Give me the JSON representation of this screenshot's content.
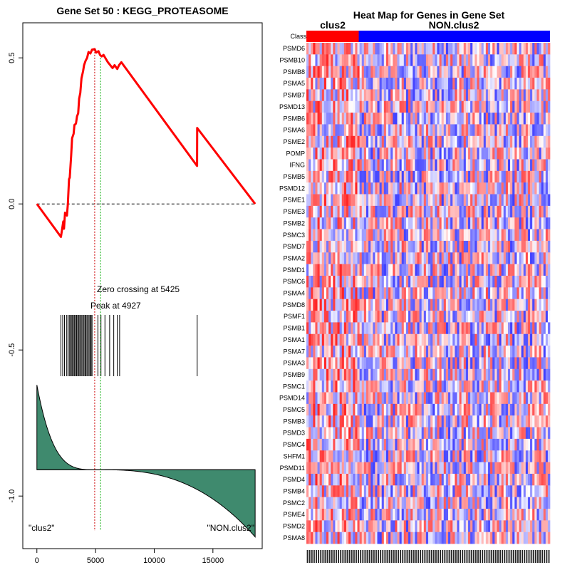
{
  "chart_data": [
    {
      "type": "line",
      "title": "Gene Set  50 : KEGG_PROTEASOME",
      "xlim": [
        -1200,
        19200
      ],
      "ylim": [
        -1.18,
        0.62
      ],
      "x_ticks": [
        0,
        5000,
        10000,
        15000
      ],
      "y_ticks": [
        0.5,
        0.0,
        -0.5,
        -1.0
      ],
      "y_tick_labels": [
        "0.5",
        "0.0",
        "-0.5",
        "-1.0"
      ],
      "n_genes": 18600,
      "peak": 4927,
      "zero_crossing": 5425,
      "peak_label": "Peak at 4927",
      "zero_label": "Zero crossing at 5425",
      "left_label": "\"clus2\"",
      "right_label": "\"NON.clus2\"",
      "running_es": [
        [
          0,
          0.0
        ],
        [
          2050,
          -0.113
        ],
        [
          2250,
          -0.06
        ],
        [
          2310,
          -0.085
        ],
        [
          2400,
          -0.03
        ],
        [
          2560,
          -0.04
        ],
        [
          2640,
          0.0
        ],
        [
          2740,
          0.085
        ],
        [
          2800,
          0.09
        ],
        [
          2920,
          0.165
        ],
        [
          3000,
          0.225
        ],
        [
          3130,
          0.24
        ],
        [
          3200,
          0.27
        ],
        [
          3330,
          0.275
        ],
        [
          3420,
          0.3
        ],
        [
          3520,
          0.31
        ],
        [
          3600,
          0.36
        ],
        [
          3700,
          0.38
        ],
        [
          3800,
          0.43
        ],
        [
          3940,
          0.455
        ],
        [
          4020,
          0.475
        ],
        [
          4150,
          0.49
        ],
        [
          4280,
          0.5
        ],
        [
          4400,
          0.52
        ],
        [
          4560,
          0.515
        ],
        [
          4700,
          0.528
        ],
        [
          4927,
          0.53
        ],
        [
          5050,
          0.518
        ],
        [
          5250,
          0.523
        ],
        [
          5380,
          0.51
        ],
        [
          5520,
          0.505
        ],
        [
          5680,
          0.51
        ],
        [
          6050,
          0.485
        ],
        [
          6450,
          0.465
        ],
        [
          6620,
          0.475
        ],
        [
          6850,
          0.462
        ],
        [
          7000,
          0.475
        ],
        [
          7200,
          0.485
        ],
        [
          13650,
          0.13
        ],
        [
          13660,
          0.26
        ],
        [
          18600,
          0.0
        ]
      ],
      "hits": [
        2050,
        2200,
        2350,
        2520,
        2640,
        2760,
        2850,
        2940,
        3030,
        3120,
        3210,
        3300,
        3380,
        3470,
        3560,
        3650,
        3740,
        3830,
        3920,
        4010,
        4100,
        4180,
        4270,
        4360,
        4450,
        4540,
        4620,
        4700,
        5200,
        5460,
        5800,
        6200,
        6550,
        6850,
        7050,
        13660
      ],
      "ranked_metric": {
        "zero_at": 5425,
        "min": -0.76,
        "y_axis": -0.91,
        "rescale_top": -0.62,
        "rescale_bottom": -1.14
      }
    },
    {
      "type": "heatmap",
      "title": "Heat Map for Genes in Gene Set",
      "class_row_label": "Class",
      "class_labels": [
        "clus2",
        "NON.clus2"
      ],
      "class_colors": [
        "#ff0000",
        "#0000ff"
      ],
      "class_split_fraction": 0.215,
      "n_samples": 110,
      "genes": [
        "PSMD6",
        "PSMB10",
        "PSMB8",
        "PSMA5",
        "PSMB7",
        "PSMD13",
        "PSMB6",
        "PSMA6",
        "PSME2",
        "POMP",
        "IFNG",
        "PSMB5",
        "PSMD12",
        "PSME1",
        "PSME3",
        "PSMB2",
        "PSMC3",
        "PSMD7",
        "PSMA2",
        "PSMD1",
        "PSMC6",
        "PSMA4",
        "PSMD8",
        "PSMF1",
        "PSMB1",
        "PSMA1",
        "PSMA7",
        "PSMA3",
        "PSMB9",
        "PSMC1",
        "PSMD14",
        "PSMC5",
        "PSMB3",
        "PSMD3",
        "PSMC4",
        "SHFM1",
        "PSMD11",
        "PSMD4",
        "PSMB4",
        "PSMC2",
        "PSME4",
        "PSMD2",
        "PSMA8"
      ],
      "colors": {
        "high": "#ff0000",
        "mid": "#ffffff",
        "low": "#0000ff"
      }
    }
  ],
  "colors": {
    "es_line": "#ff0000",
    "metric_fill": "#3f8a6e",
    "peak_line": "#cc0000",
    "zero_line": "#00aa00"
  }
}
